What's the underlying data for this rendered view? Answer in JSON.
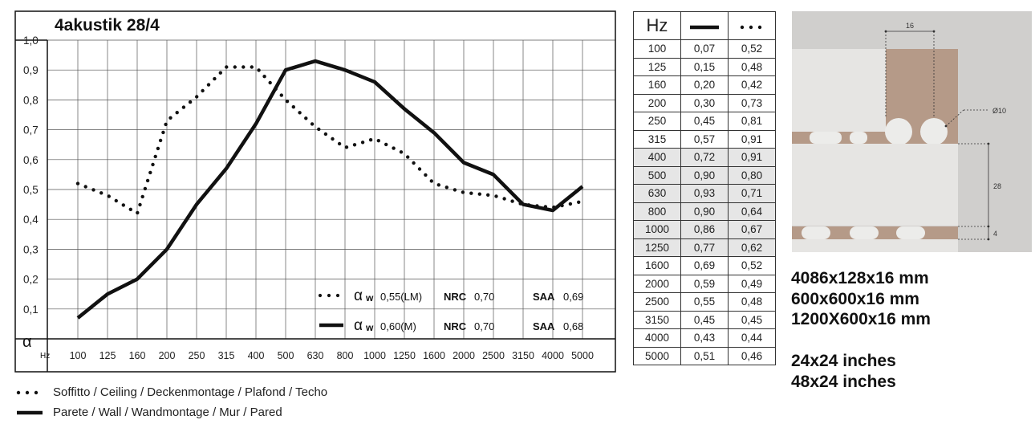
{
  "chart_data": {
    "type": "line",
    "title": "4akustik 28/4",
    "xlabel": "Hz",
    "ylabel": "α",
    "ylim": [
      0,
      1
    ],
    "grid": true,
    "y_ticks": [
      "0,1",
      "0,2",
      "0,3",
      "0,4",
      "0,5",
      "0,6",
      "0,7",
      "0,8",
      "0,9",
      "1,0"
    ],
    "categories": [
      "100",
      "125",
      "160",
      "200",
      "250",
      "315",
      "400",
      "500",
      "630",
      "800",
      "1000",
      "1250",
      "1600",
      "2000",
      "2500",
      "3150",
      "4000",
      "5000"
    ],
    "series": [
      {
        "name": "Soffitto / Ceiling / Deckenmontage / Plafond / Techo",
        "style": "dotted",
        "values": [
          0.52,
          0.48,
          0.42,
          0.73,
          0.81,
          0.91,
          0.91,
          0.8,
          0.71,
          0.64,
          0.67,
          0.62,
          0.52,
          0.49,
          0.48,
          0.45,
          0.44,
          0.46
        ]
      },
      {
        "name": "Parete / Wall / Wandmontage / Mur / Pared",
        "style": "solid",
        "values": [
          0.07,
          0.15,
          0.2,
          0.3,
          0.45,
          0.57,
          0.72,
          0.9,
          0.93,
          0.9,
          0.86,
          0.77,
          0.69,
          0.59,
          0.55,
          0.45,
          0.43,
          0.51
        ]
      }
    ],
    "inset_legend": [
      {
        "symbol": "dotted",
        "alpha": "α",
        "w": "w",
        "alpha_value": "0,55(LM)",
        "nrc_label": "NRC",
        "nrc_value": "0,70",
        "saa_label": "SAA",
        "saa_value": "0,69"
      },
      {
        "symbol": "solid",
        "alpha": "α",
        "w": "w",
        "alpha_value": "0,60(M)",
        "nrc_label": "NRC",
        "nrc_value": "0,70",
        "saa_label": "SAA",
        "saa_value": "0,68"
      }
    ],
    "legend_position": "bottom-right"
  },
  "legend": {
    "ceiling": "Soffitto / Ceiling / Deckenmontage / Plafond / Techo",
    "wall": "Parete / Wall / Wandmontage / Mur / Pared"
  },
  "table": {
    "header": "Hz",
    "rows": [
      {
        "hz": "100",
        "solid": "0,07",
        "dotted": "0,52",
        "shaded": false
      },
      {
        "hz": "125",
        "solid": "0,15",
        "dotted": "0,48",
        "shaded": false
      },
      {
        "hz": "160",
        "solid": "0,20",
        "dotted": "0,42",
        "shaded": false
      },
      {
        "hz": "200",
        "solid": "0,30",
        "dotted": "0,73",
        "shaded": false
      },
      {
        "hz": "250",
        "solid": "0,45",
        "dotted": "0,81",
        "shaded": false
      },
      {
        "hz": "315",
        "solid": "0,57",
        "dotted": "0,91",
        "shaded": false
      },
      {
        "hz": "400",
        "solid": "0,72",
        "dotted": "0,91",
        "shaded": true
      },
      {
        "hz": "500",
        "solid": "0,90",
        "dotted": "0,80",
        "shaded": true
      },
      {
        "hz": "630",
        "solid": "0,93",
        "dotted": "0,71",
        "shaded": true
      },
      {
        "hz": "800",
        "solid": "0,90",
        "dotted": "0,64",
        "shaded": true
      },
      {
        "hz": "1000",
        "solid": "0,86",
        "dotted": "0,67",
        "shaded": true
      },
      {
        "hz": "1250",
        "solid": "0,77",
        "dotted": "0,62",
        "shaded": true
      },
      {
        "hz": "1600",
        "solid": "0,69",
        "dotted": "0,52",
        "shaded": false
      },
      {
        "hz": "2000",
        "solid": "0,59",
        "dotted": "0,49",
        "shaded": false
      },
      {
        "hz": "2500",
        "solid": "0,55",
        "dotted": "0,48",
        "shaded": false
      },
      {
        "hz": "3150",
        "solid": "0,45",
        "dotted": "0,45",
        "shaded": false
      },
      {
        "hz": "4000",
        "solid": "0,43",
        "dotted": "0,44",
        "shaded": false
      },
      {
        "hz": "5000",
        "solid": "0,51",
        "dotted": "0,46",
        "shaded": false
      }
    ]
  },
  "diagram": {
    "dim_top": "16",
    "dim_hole": "Ø10",
    "dim_height": "28",
    "dim_bottom": "4",
    "colors": {
      "background": "#d0cfcd",
      "panel": "#e6e5e3",
      "wood": "#b59a88",
      "hole": "#ececea"
    }
  },
  "dimensions": {
    "mm": [
      "4086x128x16 mm",
      "600x600x16 mm",
      "1200X600x16 mm"
    ],
    "inches": [
      "24x24 inches",
      "48x24 inches"
    ]
  }
}
